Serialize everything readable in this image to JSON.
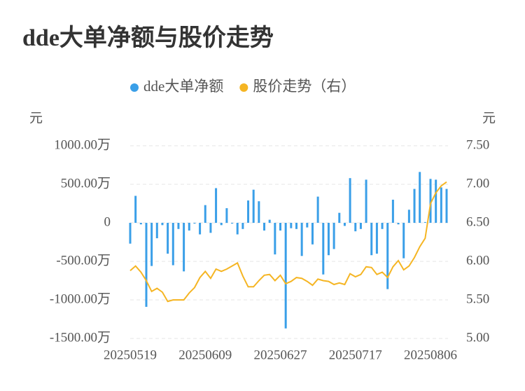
{
  "chart_data": {
    "type": "bar",
    "title": "dde大单净额与股价走势",
    "y_label": "元",
    "y2_label": "元",
    "grid": true,
    "categories": [
      "20250519",
      null,
      null,
      null,
      null,
      null,
      null,
      null,
      null,
      null,
      null,
      null,
      null,
      null,
      "20250609",
      null,
      null,
      null,
      null,
      null,
      null,
      null,
      null,
      null,
      null,
      null,
      null,
      null,
      "20250627",
      null,
      null,
      null,
      null,
      null,
      null,
      null,
      null,
      null,
      null,
      null,
      null,
      null,
      "20250717",
      null,
      null,
      null,
      null,
      null,
      null,
      null,
      null,
      null,
      null,
      null,
      null,
      null,
      "20250806",
      null,
      null,
      null
    ],
    "ylim": [
      -1500,
      1000
    ],
    "yticks": [
      {
        "value": -1500,
        "label": "-1500.00万"
      },
      {
        "value": -1000,
        "label": "-1000.00万"
      },
      {
        "value": -500,
        "label": "-500.00万"
      },
      0,
      {
        "value": 500,
        "label": "500.00万"
      },
      {
        "value": 1000,
        "label": "1000.00万"
      }
    ],
    "y2lim": [
      5,
      7.5
    ],
    "y2ticks": [
      {
        "value": 5,
        "label": "5.00"
      },
      {
        "value": 5.5,
        "label": "5.50"
      },
      {
        "value": 6,
        "label": "6.00"
      },
      {
        "value": 6.5,
        "label": "6.50"
      },
      {
        "value": 7,
        "label": "7.00"
      },
      {
        "value": 7.5,
        "label": "7.50"
      }
    ],
    "series": [
      {
        "name": "dde大单净额",
        "type": "bar",
        "color": "#3a9fe8",
        "values": [
          -270,
          350,
          -20,
          -1090,
          -560,
          -200,
          -30,
          -400,
          -550,
          -80,
          -630,
          -100,
          -10,
          -150,
          230,
          -130,
          450,
          -30,
          190,
          -10,
          -150,
          -80,
          290,
          430,
          280,
          -100,
          40,
          -410,
          -100,
          -1370,
          -70,
          -80,
          -430,
          -60,
          -280,
          340,
          -670,
          -420,
          -340,
          130,
          -40,
          580,
          -110,
          -80,
          560,
          -420,
          -400,
          -80,
          -860,
          300,
          -20,
          -460,
          170,
          440,
          660,
          10,
          570,
          560,
          460,
          440
        ]
      },
      {
        "name": "股价走势（右）",
        "type": "line",
        "axis": "y2",
        "color": "#f5b523",
        "values": [
          5.88,
          5.94,
          5.86,
          5.75,
          5.61,
          5.65,
          5.6,
          5.48,
          5.5,
          5.5,
          5.5,
          5.59,
          5.66,
          5.79,
          5.87,
          5.78,
          5.9,
          5.87,
          5.9,
          5.94,
          5.98,
          5.81,
          5.67,
          5.67,
          5.75,
          5.82,
          5.83,
          5.75,
          5.82,
          5.71,
          5.74,
          5.79,
          5.78,
          5.74,
          5.69,
          5.77,
          5.75,
          5.74,
          5.7,
          5.72,
          5.7,
          5.84,
          5.8,
          5.83,
          5.93,
          5.92,
          5.83,
          5.86,
          5.79,
          5.93,
          6.01,
          5.89,
          5.94,
          6.05,
          6.19,
          6.3,
          6.75,
          6.89,
          6.98,
          7.03
        ]
      }
    ]
  }
}
